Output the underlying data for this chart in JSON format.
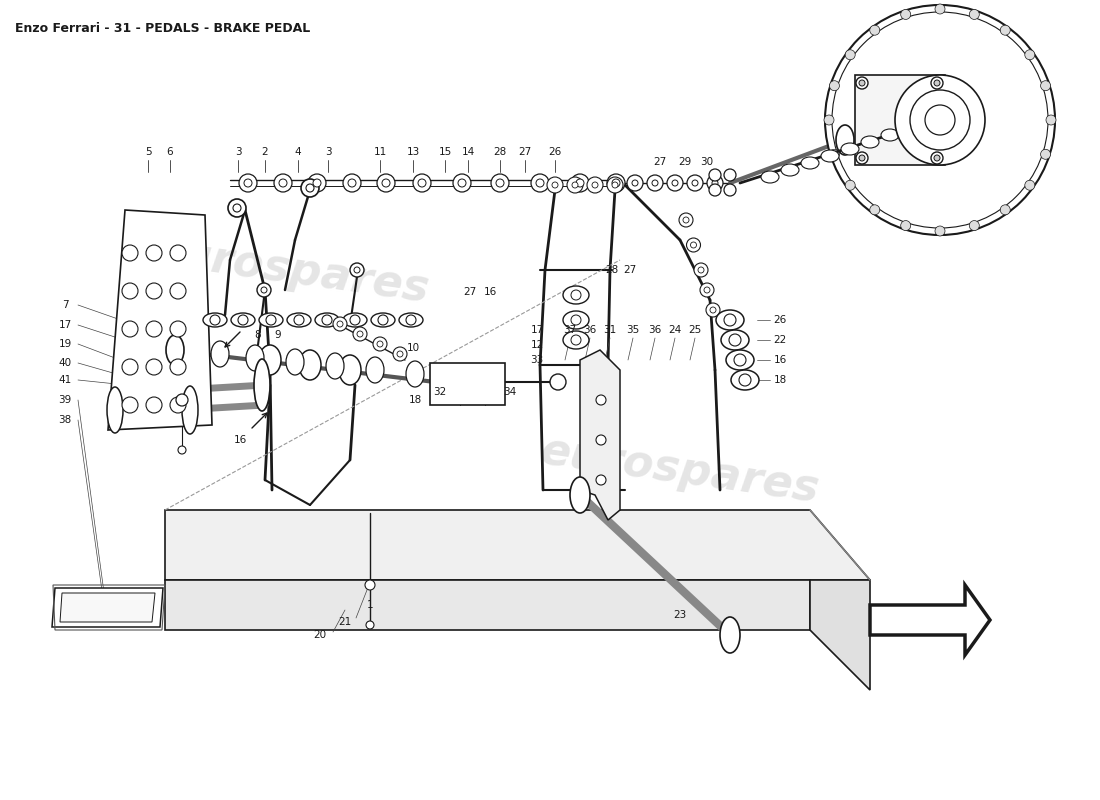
{
  "title": "Enzo Ferrari - 31 - PEDALS - BRAKE PEDAL",
  "title_fontsize": 9,
  "background_color": "#ffffff",
  "line_color": "#1a1a1a",
  "watermark_text": "eurospares",
  "label_fontsize": 7.5
}
